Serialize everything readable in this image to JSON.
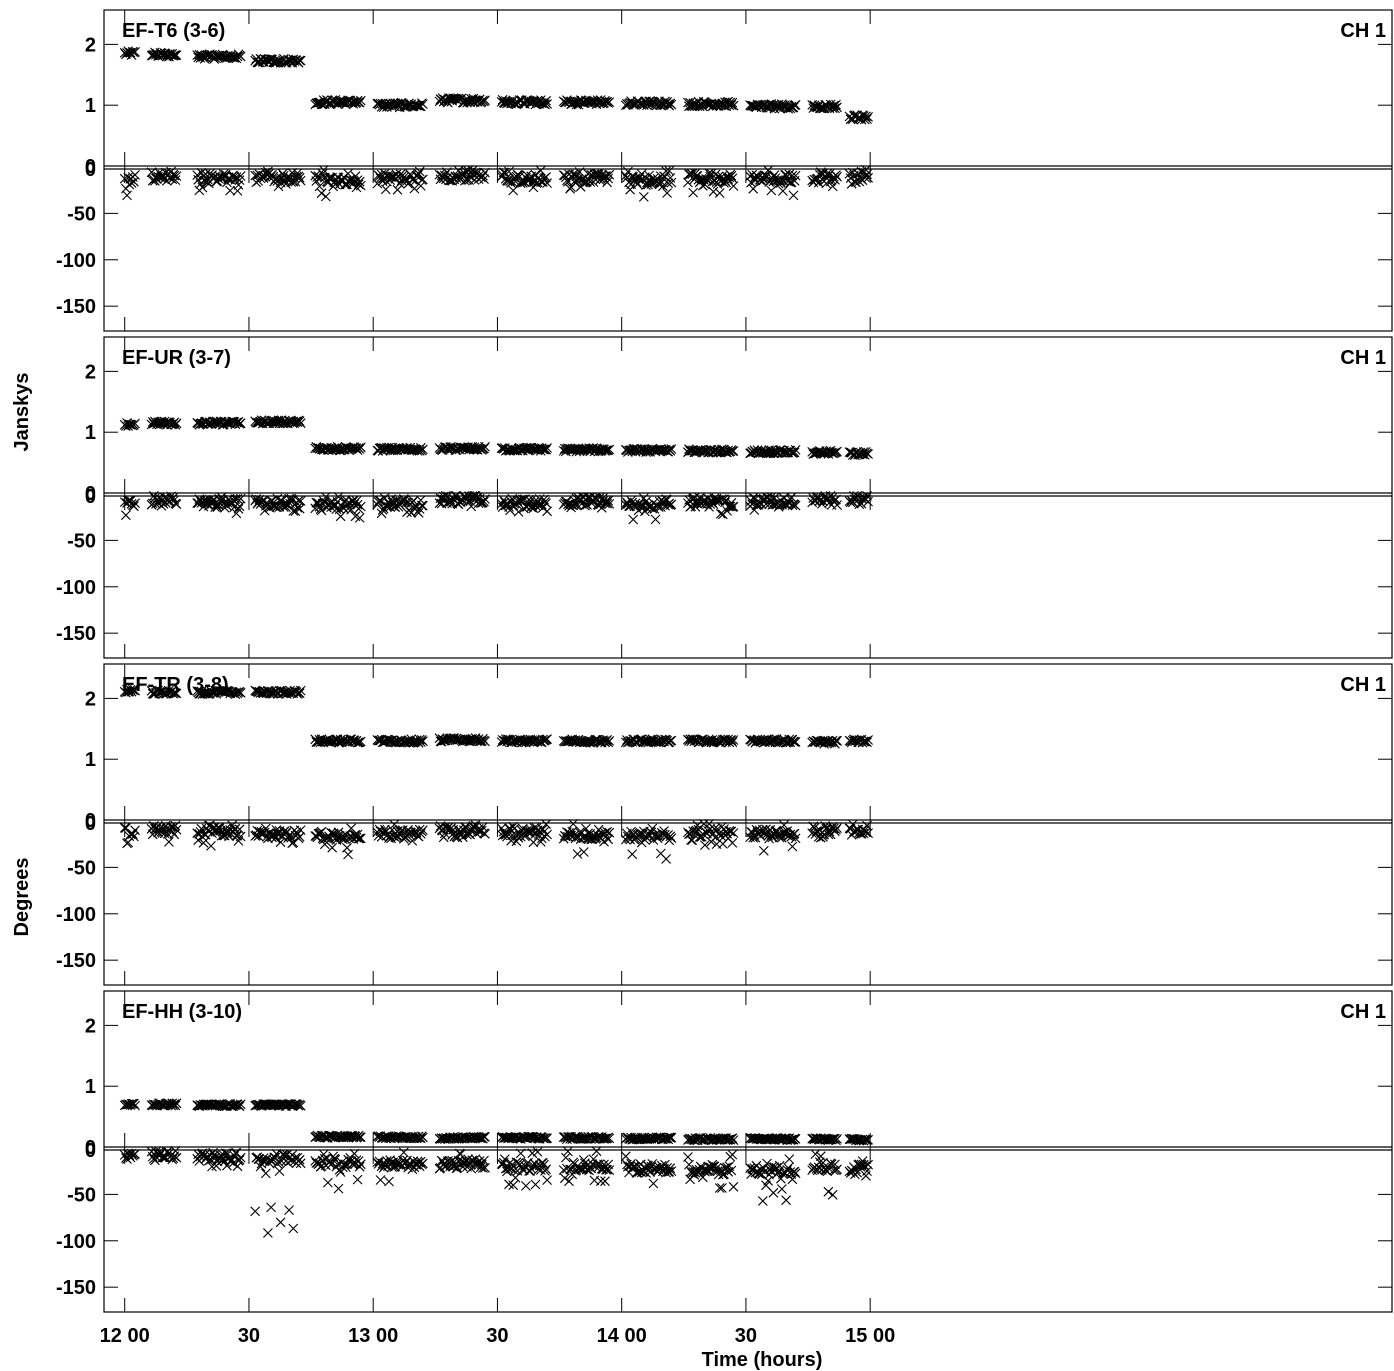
{
  "chart_data": {
    "type": "scatter",
    "marker": "x",
    "color": "#000000",
    "xlabel": "Time (hours)",
    "ylabel_amplitude": "Janskys",
    "ylabel_phase": "Degrees",
    "x_units": "minutes after 12:00",
    "xlim": [
      -5,
      306
    ],
    "x_ticks": [
      {
        "value": 0,
        "label": "12 00"
      },
      {
        "value": 30,
        "label": "30"
      },
      {
        "value": 60,
        "label": "13 00"
      },
      {
        "value": 90,
        "label": "30"
      },
      {
        "value": 120,
        "label": "14 00"
      },
      {
        "value": 150,
        "label": "30"
      },
      {
        "value": 180,
        "label": "15 00"
      }
    ],
    "amplitude_ylim": [
      0,
      2.5
    ],
    "amplitude_ticks": [
      0,
      1,
      2
    ],
    "phase_ylim": [
      -180,
      0
    ],
    "phase_ticks": [
      0,
      -50,
      -100,
      -150
    ],
    "scans": [
      [
        0,
        2.5
      ],
      [
        6.5,
        12.5
      ],
      [
        17.5,
        28
      ],
      [
        31.5,
        42.5
      ],
      [
        46,
        57
      ],
      [
        61,
        72
      ],
      [
        76,
        87
      ],
      [
        91,
        102
      ],
      [
        106,
        117
      ],
      [
        121,
        132
      ],
      [
        136,
        147
      ],
      [
        151,
        162
      ],
      [
        166,
        172
      ],
      [
        175,
        179.5
      ]
    ],
    "panels": [
      {
        "baseline": "EF-T6 (3-6)",
        "channel": "CH 1",
        "amplitude": [
          1.85,
          1.83,
          1.8,
          1.73,
          1.05,
          1.0,
          1.08,
          1.05,
          1.05,
          1.03,
          1.02,
          0.98,
          0.98,
          0.8
        ],
        "amp_scatter": 0.04,
        "phase_mean": [
          -15,
          -10,
          -12,
          -12,
          -14,
          -12,
          -10,
          -13,
          -12,
          -14,
          -12,
          -13,
          -12,
          -12
        ],
        "phase_depth": [
          35,
          15,
          25,
          18,
          30,
          22,
          15,
          25,
          22,
          32,
          25,
          30,
          18,
          20
        ]
      },
      {
        "baseline": "EF-UR (3-7)",
        "channel": "CH 1",
        "amplitude": [
          1.13,
          1.15,
          1.15,
          1.17,
          0.73,
          0.72,
          0.73,
          0.72,
          0.71,
          0.7,
          0.69,
          0.68,
          0.67,
          0.65
        ],
        "amp_scatter": 0.03,
        "phase_mean": [
          -12,
          -6,
          -10,
          -10,
          -12,
          -10,
          -6,
          -10,
          -8,
          -10,
          -9,
          -8,
          -6,
          -6
        ],
        "phase_depth": [
          30,
          10,
          22,
          18,
          30,
          18,
          12,
          18,
          12,
          25,
          20,
          15,
          10,
          10
        ]
      },
      {
        "baseline": "EF-TR (3-8)",
        "channel": "CH 1",
        "amplitude": [
          2.12,
          2.1,
          2.1,
          2.1,
          1.3,
          1.3,
          1.32,
          1.3,
          1.3,
          1.3,
          1.3,
          1.3,
          1.28,
          1.3
        ],
        "amp_scatter": 0.03,
        "phase_mean": [
          -12,
          -10,
          -12,
          -14,
          -15,
          -14,
          -10,
          -12,
          -15,
          -16,
          -13,
          -14,
          -10,
          -10
        ],
        "phase_depth": [
          28,
          20,
          35,
          22,
          35,
          28,
          15,
          22,
          35,
          38,
          25,
          30,
          15,
          15
        ]
      },
      {
        "baseline": "EF-HH (3-10)",
        "channel": "CH 1",
        "amplitude": [
          0.7,
          0.7,
          0.69,
          0.69,
          0.17,
          0.16,
          0.15,
          0.15,
          0.15,
          0.14,
          0.13,
          0.13,
          0.13,
          0.12
        ],
        "amp_scatter": 0.02,
        "phase_mean": [
          -8,
          -8,
          -10,
          -12,
          -16,
          -18,
          -18,
          -20,
          -20,
          -22,
          -24,
          -24,
          -20,
          -22
        ],
        "phase_depth": [
          12,
          12,
          18,
          90,
          45,
          40,
          35,
          42,
          35,
          50,
          45,
          55,
          48,
          52
        ]
      }
    ]
  }
}
